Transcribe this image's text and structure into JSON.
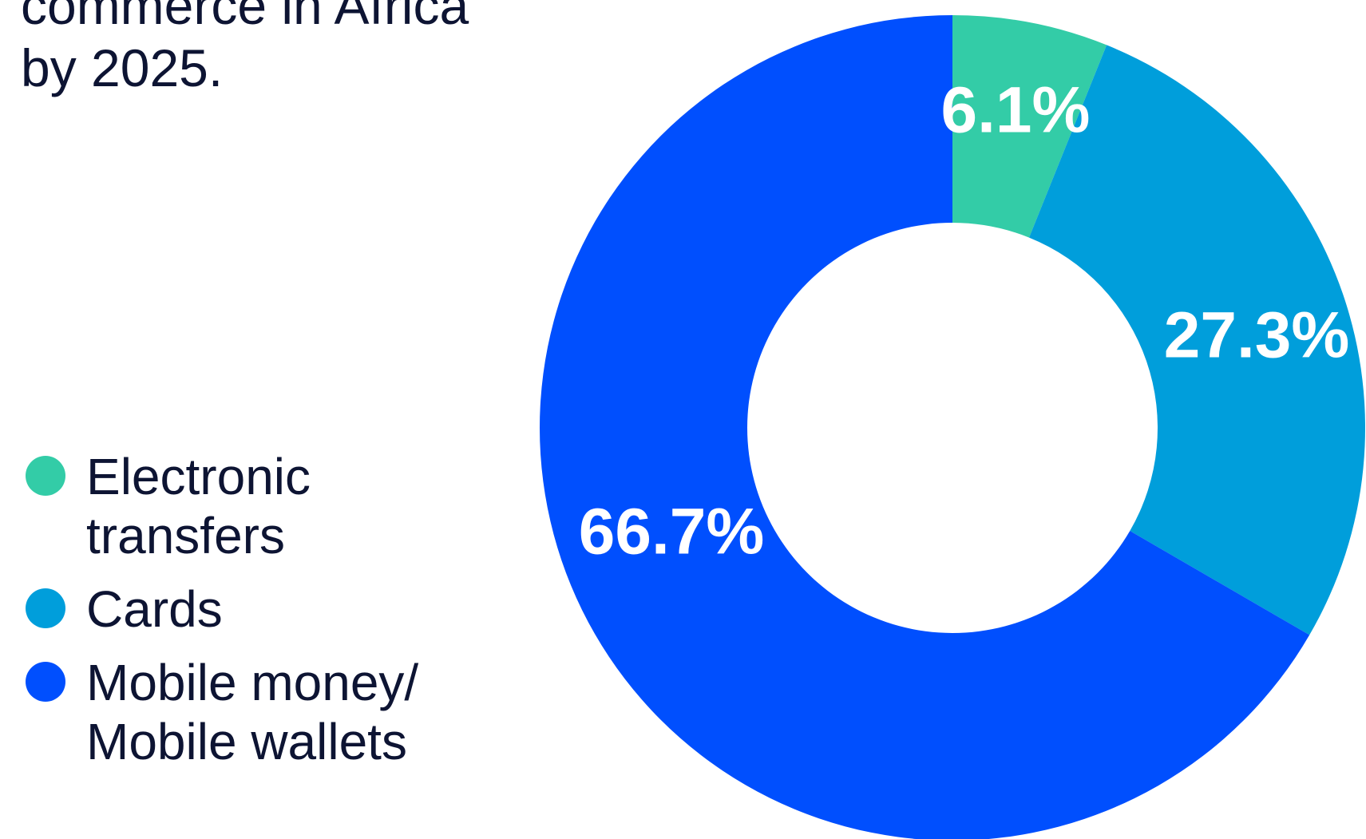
{
  "heading": {
    "lines": [
      "",
      "commerce in Africa",
      "by 2025."
    ]
  },
  "chart_data": {
    "type": "pie",
    "title": "",
    "categories": [
      "Electronic transfers",
      "Cards",
      "Mobile money/ Mobile wallets"
    ],
    "values": [
      6.1,
      27.3,
      66.7
    ],
    "data_labels": [
      "6.1%",
      "27.3%",
      "66.7%"
    ],
    "colors": [
      "#33cca7",
      "#009edb",
      "#004ffe"
    ],
    "legend": {
      "placement": "left",
      "entries": [
        {
          "lines": [
            "Electronic",
            "transfers"
          ]
        },
        {
          "lines": [
            "Cards"
          ]
        },
        {
          "lines": [
            "Mobile money/",
            "Mobile wallets"
          ]
        }
      ]
    }
  }
}
